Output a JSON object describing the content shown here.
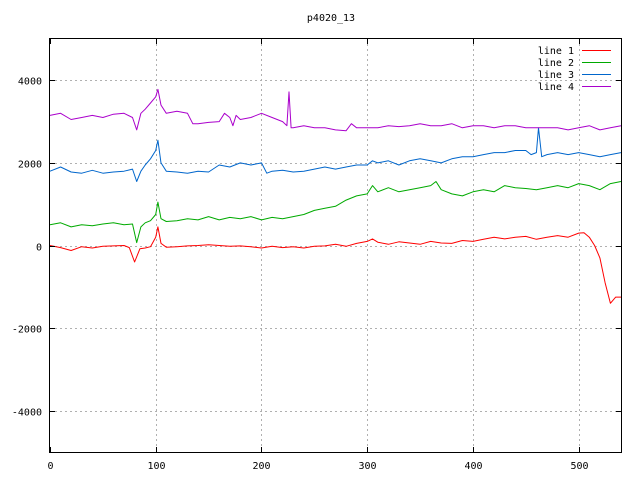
{
  "chart_data": {
    "type": "line",
    "title": "p4020_13",
    "xlabel": "",
    "ylabel": "",
    "xlim": [
      0,
      540
    ],
    "ylim": [
      -5000,
      5000
    ],
    "x_ticks": [
      0,
      100,
      200,
      300,
      400,
      500
    ],
    "y_ticks": [
      -4000,
      -2000,
      0,
      2000,
      4000
    ],
    "grid": true,
    "legend_position": "top-right",
    "series": [
      {
        "name": "line 1",
        "color": "#ff0000",
        "points": [
          [
            0,
            0
          ],
          [
            10,
            -50
          ],
          [
            20,
            -120
          ],
          [
            30,
            -30
          ],
          [
            40,
            -60
          ],
          [
            50,
            -20
          ],
          [
            60,
            -10
          ],
          [
            70,
            0
          ],
          [
            75,
            -50
          ],
          [
            80,
            -400
          ],
          [
            85,
            -80
          ],
          [
            90,
            -60
          ],
          [
            95,
            -30
          ],
          [
            100,
            200
          ],
          [
            102,
            450
          ],
          [
            105,
            50
          ],
          [
            110,
            -40
          ],
          [
            120,
            -30
          ],
          [
            130,
            -10
          ],
          [
            140,
            0
          ],
          [
            150,
            20
          ],
          [
            160,
            0
          ],
          [
            170,
            -20
          ],
          [
            180,
            -10
          ],
          [
            190,
            -30
          ],
          [
            200,
            -60
          ],
          [
            210,
            -20
          ],
          [
            220,
            -50
          ],
          [
            230,
            -30
          ],
          [
            240,
            -60
          ],
          [
            250,
            -20
          ],
          [
            260,
            -10
          ],
          [
            270,
            30
          ],
          [
            280,
            -20
          ],
          [
            290,
            50
          ],
          [
            300,
            100
          ],
          [
            305,
            160
          ],
          [
            310,
            80
          ],
          [
            320,
            30
          ],
          [
            330,
            90
          ],
          [
            340,
            60
          ],
          [
            350,
            30
          ],
          [
            360,
            100
          ],
          [
            370,
            60
          ],
          [
            380,
            50
          ],
          [
            390,
            120
          ],
          [
            400,
            100
          ],
          [
            410,
            150
          ],
          [
            420,
            200
          ],
          [
            430,
            160
          ],
          [
            440,
            200
          ],
          [
            450,
            220
          ],
          [
            460,
            150
          ],
          [
            470,
            200
          ],
          [
            480,
            240
          ],
          [
            490,
            200
          ],
          [
            500,
            300
          ],
          [
            505,
            310
          ],
          [
            510,
            200
          ],
          [
            515,
            0
          ],
          [
            520,
            -300
          ],
          [
            525,
            -900
          ],
          [
            530,
            -1400
          ],
          [
            535,
            -1250
          ],
          [
            540,
            -1250
          ]
        ]
      },
      {
        "name": "line 2",
        "color": "#00aa00",
        "points": [
          [
            0,
            500
          ],
          [
            10,
            550
          ],
          [
            20,
            450
          ],
          [
            30,
            500
          ],
          [
            40,
            480
          ],
          [
            50,
            520
          ],
          [
            60,
            550
          ],
          [
            70,
            500
          ],
          [
            78,
            520
          ],
          [
            82,
            70
          ],
          [
            86,
            450
          ],
          [
            90,
            550
          ],
          [
            95,
            600
          ],
          [
            100,
            750
          ],
          [
            102,
            1050
          ],
          [
            105,
            650
          ],
          [
            110,
            580
          ],
          [
            120,
            600
          ],
          [
            130,
            650
          ],
          [
            140,
            620
          ],
          [
            150,
            700
          ],
          [
            160,
            620
          ],
          [
            170,
            680
          ],
          [
            180,
            650
          ],
          [
            190,
            700
          ],
          [
            200,
            620
          ],
          [
            210,
            680
          ],
          [
            220,
            650
          ],
          [
            230,
            700
          ],
          [
            240,
            750
          ],
          [
            250,
            850
          ],
          [
            260,
            900
          ],
          [
            270,
            950
          ],
          [
            280,
            1100
          ],
          [
            290,
            1200
          ],
          [
            300,
            1250
          ],
          [
            305,
            1450
          ],
          [
            310,
            1300
          ],
          [
            320,
            1400
          ],
          [
            330,
            1300
          ],
          [
            340,
            1350
          ],
          [
            350,
            1400
          ],
          [
            360,
            1450
          ],
          [
            365,
            1550
          ],
          [
            370,
            1350
          ],
          [
            380,
            1250
          ],
          [
            390,
            1200
          ],
          [
            400,
            1300
          ],
          [
            410,
            1350
          ],
          [
            420,
            1300
          ],
          [
            430,
            1450
          ],
          [
            440,
            1400
          ],
          [
            450,
            1380
          ],
          [
            460,
            1350
          ],
          [
            470,
            1400
          ],
          [
            480,
            1450
          ],
          [
            490,
            1400
          ],
          [
            500,
            1500
          ],
          [
            510,
            1450
          ],
          [
            520,
            1350
          ],
          [
            530,
            1500
          ],
          [
            540,
            1550
          ]
        ]
      },
      {
        "name": "line 3",
        "color": "#0066cc",
        "points": [
          [
            0,
            1800
          ],
          [
            10,
            1900
          ],
          [
            20,
            1780
          ],
          [
            30,
            1750
          ],
          [
            40,
            1820
          ],
          [
            50,
            1750
          ],
          [
            60,
            1780
          ],
          [
            70,
            1800
          ],
          [
            78,
            1850
          ],
          [
            82,
            1550
          ],
          [
            86,
            1800
          ],
          [
            90,
            1950
          ],
          [
            95,
            2100
          ],
          [
            100,
            2300
          ],
          [
            102,
            2550
          ],
          [
            105,
            2000
          ],
          [
            110,
            1800
          ],
          [
            120,
            1780
          ],
          [
            130,
            1750
          ],
          [
            140,
            1800
          ],
          [
            150,
            1780
          ],
          [
            160,
            1950
          ],
          [
            170,
            1900
          ],
          [
            180,
            2000
          ],
          [
            190,
            1950
          ],
          [
            200,
            2000
          ],
          [
            205,
            1750
          ],
          [
            210,
            1800
          ],
          [
            220,
            1820
          ],
          [
            230,
            1780
          ],
          [
            240,
            1800
          ],
          [
            250,
            1850
          ],
          [
            260,
            1900
          ],
          [
            270,
            1850
          ],
          [
            280,
            1900
          ],
          [
            290,
            1950
          ],
          [
            300,
            1950
          ],
          [
            305,
            2050
          ],
          [
            310,
            2000
          ],
          [
            320,
            2050
          ],
          [
            330,
            1950
          ],
          [
            340,
            2050
          ],
          [
            350,
            2100
          ],
          [
            360,
            2050
          ],
          [
            370,
            2000
          ],
          [
            380,
            2100
          ],
          [
            390,
            2150
          ],
          [
            400,
            2150
          ],
          [
            410,
            2200
          ],
          [
            420,
            2250
          ],
          [
            430,
            2250
          ],
          [
            440,
            2300
          ],
          [
            450,
            2300
          ],
          [
            455,
            2200
          ],
          [
            460,
            2250
          ],
          [
            462,
            2850
          ],
          [
            465,
            2150
          ],
          [
            470,
            2200
          ],
          [
            480,
            2250
          ],
          [
            490,
            2200
          ],
          [
            500,
            2250
          ],
          [
            510,
            2200
          ],
          [
            520,
            2150
          ],
          [
            530,
            2200
          ],
          [
            540,
            2250
          ]
        ]
      },
      {
        "name": "line 4",
        "color": "#aa00cc",
        "points": [
          [
            0,
            3150
          ],
          [
            10,
            3200
          ],
          [
            20,
            3050
          ],
          [
            30,
            3100
          ],
          [
            40,
            3150
          ],
          [
            50,
            3100
          ],
          [
            60,
            3180
          ],
          [
            70,
            3200
          ],
          [
            78,
            3100
          ],
          [
            82,
            2800
          ],
          [
            86,
            3200
          ],
          [
            90,
            3300
          ],
          [
            95,
            3450
          ],
          [
            100,
            3600
          ],
          [
            102,
            3780
          ],
          [
            105,
            3400
          ],
          [
            110,
            3200
          ],
          [
            120,
            3250
          ],
          [
            130,
            3200
          ],
          [
            135,
            2950
          ],
          [
            140,
            2950
          ],
          [
            150,
            2980
          ],
          [
            160,
            3000
          ],
          [
            165,
            3200
          ],
          [
            170,
            3100
          ],
          [
            173,
            2900
          ],
          [
            176,
            3150
          ],
          [
            180,
            3050
          ],
          [
            190,
            3100
          ],
          [
            200,
            3200
          ],
          [
            210,
            3100
          ],
          [
            220,
            3000
          ],
          [
            224,
            2900
          ],
          [
            226,
            3720
          ],
          [
            228,
            2850
          ],
          [
            230,
            2850
          ],
          [
            240,
            2900
          ],
          [
            250,
            2850
          ],
          [
            260,
            2850
          ],
          [
            270,
            2800
          ],
          [
            280,
            2780
          ],
          [
            285,
            2950
          ],
          [
            290,
            2850
          ],
          [
            300,
            2850
          ],
          [
            310,
            2850
          ],
          [
            320,
            2900
          ],
          [
            330,
            2880
          ],
          [
            340,
            2900
          ],
          [
            350,
            2950
          ],
          [
            360,
            2900
          ],
          [
            370,
            2900
          ],
          [
            380,
            2950
          ],
          [
            390,
            2850
          ],
          [
            400,
            2900
          ],
          [
            410,
            2900
          ],
          [
            420,
            2850
          ],
          [
            430,
            2900
          ],
          [
            440,
            2900
          ],
          [
            450,
            2850
          ],
          [
            460,
            2850
          ],
          [
            470,
            2850
          ],
          [
            480,
            2850
          ],
          [
            490,
            2800
          ],
          [
            500,
            2850
          ],
          [
            510,
            2900
          ],
          [
            520,
            2800
          ],
          [
            530,
            2850
          ],
          [
            540,
            2900
          ]
        ]
      }
    ]
  }
}
